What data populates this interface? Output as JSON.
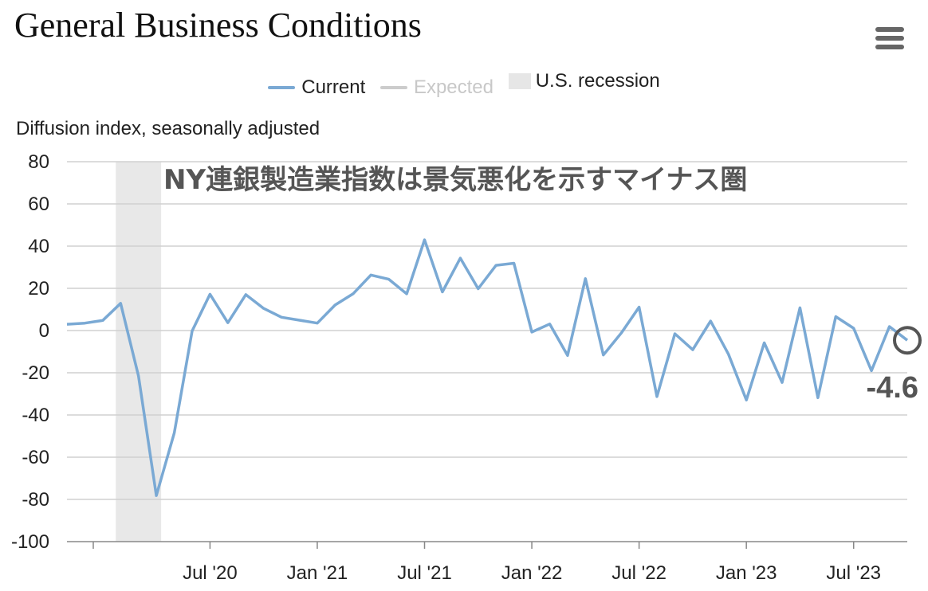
{
  "header": {
    "title": "General Business Conditions",
    "menu_icon": "hamburger-menu-icon"
  },
  "legend": [
    {
      "label": "Current",
      "color": "#7aa9d4",
      "kind": "line",
      "muted": false
    },
    {
      "label": "Expected",
      "color": "#cccccc",
      "kind": "line",
      "muted": true
    },
    {
      "label": "U.S. recession",
      "color": "#e6e6e6",
      "kind": "box",
      "muted": false
    }
  ],
  "chart_data": {
    "type": "line",
    "ylabel": "Diffusion index, seasonally adjusted",
    "ylim": [
      -100,
      80
    ],
    "yticks": [
      80,
      60,
      40,
      20,
      0,
      -20,
      -40,
      -60,
      -80,
      -100
    ],
    "x_start": "2019-11",
    "x_end": "2023-10",
    "xtick_labels": [
      {
        "date": "2020-07",
        "label": "Jul '20"
      },
      {
        "date": "2021-01",
        "label": "Jan '21"
      },
      {
        "date": "2021-07",
        "label": "Jul '21"
      },
      {
        "date": "2022-01",
        "label": "Jan '22"
      },
      {
        "date": "2022-07",
        "label": "Jul '22"
      },
      {
        "date": "2023-01",
        "label": "Jan '23"
      },
      {
        "date": "2023-07",
        "label": "Jul '23"
      }
    ],
    "recession": {
      "start": "2020-02",
      "end": "2020-04",
      "label": "U.S. recession"
    },
    "series": [
      {
        "name": "Current",
        "color": "#7aa9d4",
        "points": [
          [
            "2019-11",
            3.0
          ],
          [
            "2019-12",
            3.5
          ],
          [
            "2020-01",
            4.8
          ],
          [
            "2020-02",
            12.9
          ],
          [
            "2020-03",
            -21.5
          ],
          [
            "2020-04",
            -78.2
          ],
          [
            "2020-05",
            -48.5
          ],
          [
            "2020-06",
            -0.2
          ],
          [
            "2020-07",
            17.2
          ],
          [
            "2020-08",
            3.7
          ],
          [
            "2020-09",
            17.0
          ],
          [
            "2020-10",
            10.5
          ],
          [
            "2020-11",
            6.3
          ],
          [
            "2020-12",
            4.9
          ],
          [
            "2021-01",
            3.5
          ],
          [
            "2021-02",
            12.1
          ],
          [
            "2021-03",
            17.4
          ],
          [
            "2021-04",
            26.3
          ],
          [
            "2021-05",
            24.3
          ],
          [
            "2021-06",
            17.4
          ],
          [
            "2021-07",
            43.0
          ],
          [
            "2021-08",
            18.3
          ],
          [
            "2021-09",
            34.3
          ],
          [
            "2021-10",
            19.8
          ],
          [
            "2021-11",
            30.9
          ],
          [
            "2021-12",
            31.9
          ],
          [
            "2022-01",
            -0.7
          ],
          [
            "2022-02",
            3.1
          ],
          [
            "2022-03",
            -11.8
          ],
          [
            "2022-04",
            24.6
          ],
          [
            "2022-05",
            -11.6
          ],
          [
            "2022-06",
            -1.2
          ],
          [
            "2022-07",
            11.1
          ],
          [
            "2022-08",
            -31.3
          ],
          [
            "2022-09",
            -1.5
          ],
          [
            "2022-10",
            -9.1
          ],
          [
            "2022-11",
            4.5
          ],
          [
            "2022-12",
            -11.2
          ],
          [
            "2023-01",
            -32.9
          ],
          [
            "2023-02",
            -5.8
          ],
          [
            "2023-03",
            -24.6
          ],
          [
            "2023-04",
            10.8
          ],
          [
            "2023-05",
            -31.8
          ],
          [
            "2023-06",
            6.6
          ],
          [
            "2023-07",
            1.1
          ],
          [
            "2023-08",
            -19.0
          ],
          [
            "2023-09",
            1.9
          ],
          [
            "2023-10",
            -4.6
          ]
        ]
      }
    ],
    "annotations": [
      {
        "text": "NY連銀製造業指数は景気悪化を示すマイナス圏"
      },
      {
        "text": "-4.6",
        "date": "2023-10",
        "value": -4.6
      }
    ]
  }
}
